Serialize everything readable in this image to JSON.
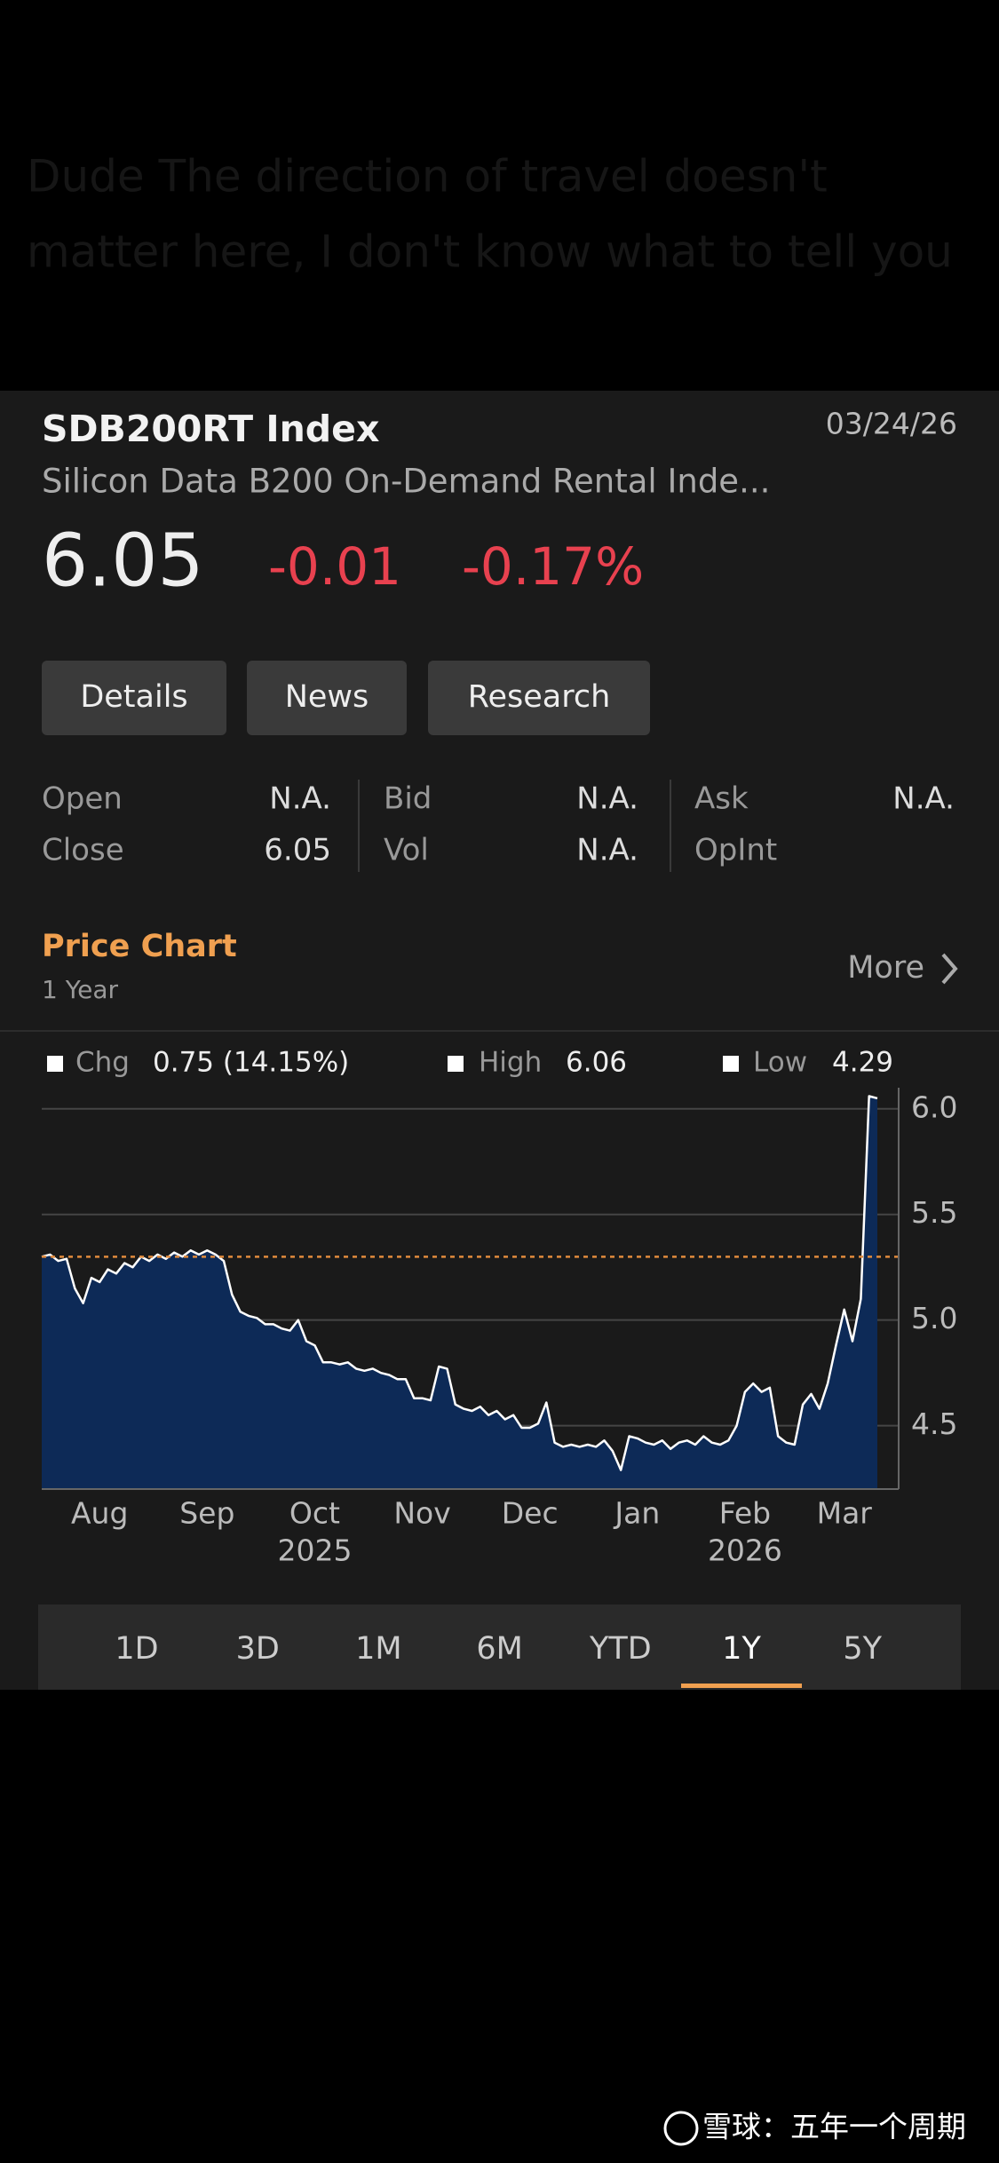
{
  "background_text": [
    "Dude The direction of travel doesn't",
    "matter here, I don't know what to tell you"
  ],
  "header": {
    "ticker": "SDB200RT Index",
    "date": "03/24/26",
    "name": "Silicon Data B200 On-Demand Rental Inde..."
  },
  "quote": {
    "last": "6.05",
    "change": "-0.01",
    "change_pct": "-0.17%"
  },
  "buttons": [
    "Details",
    "News",
    "Research"
  ],
  "stats": [
    [
      {
        "label": "Open",
        "value": "N.A."
      },
      {
        "label": "Bid",
        "value": "N.A."
      },
      {
        "label": "Ask",
        "value": "N.A."
      }
    ],
    [
      {
        "label": "Close",
        "value": "6.05"
      },
      {
        "label": "Vol",
        "value": "N.A."
      },
      {
        "label": "OpInt",
        "value": ""
      }
    ]
  ],
  "price_chart": {
    "title": "Price Chart",
    "period": "1 Year",
    "more": "More"
  },
  "chart_data": {
    "type": "line",
    "summary": [
      {
        "label": "Chg",
        "value": "0.75 (14.15%)"
      },
      {
        "label": "High",
        "value": "6.06"
      },
      {
        "label": "Low",
        "value": "4.29"
      }
    ],
    "color": "#ffffff",
    "fill_color": "#0d2a57",
    "reference_line": {
      "value": 5.3,
      "color": "#e08a3c"
    },
    "values": [
      5.3,
      5.31,
      5.28,
      5.29,
      5.15,
      5.08,
      5.2,
      5.18,
      5.24,
      5.22,
      5.27,
      5.25,
      5.3,
      5.28,
      5.31,
      5.29,
      5.32,
      5.3,
      5.33,
      5.31,
      5.33,
      5.31,
      5.28,
      5.12,
      5.04,
      5.02,
      5.01,
      4.98,
      4.98,
      4.96,
      4.95,
      5.0,
      4.9,
      4.88,
      4.8,
      4.8,
      4.79,
      4.8,
      4.77,
      4.76,
      4.77,
      4.75,
      4.74,
      4.72,
      4.72,
      4.63,
      4.63,
      4.62,
      4.78,
      4.77,
      4.6,
      4.58,
      4.57,
      4.59,
      4.55,
      4.57,
      4.53,
      4.55,
      4.49,
      4.49,
      4.51,
      4.61,
      4.42,
      4.4,
      4.41,
      4.4,
      4.41,
      4.4,
      4.43,
      4.38,
      4.29,
      4.45,
      4.44,
      4.42,
      4.41,
      4.43,
      4.39,
      4.42,
      4.43,
      4.41,
      4.45,
      4.42,
      4.41,
      4.43,
      4.5,
      4.66,
      4.7,
      4.66,
      4.68,
      4.45,
      4.42,
      4.41,
      4.6,
      4.65,
      4.58,
      4.7,
      4.88,
      5.05,
      4.9,
      5.1,
      6.06,
      6.05
    ],
    "xlim": [
      0,
      101
    ],
    "xticks": [
      {
        "value": 7,
        "label": "Aug"
      },
      {
        "value": 20,
        "label": "Sep"
      },
      {
        "value": 33,
        "label": "Oct"
      },
      {
        "value": 46,
        "label": "Nov"
      },
      {
        "value": 59,
        "label": "Dec"
      },
      {
        "value": 72,
        "label": "Jan"
      },
      {
        "value": 85,
        "label": "Feb"
      },
      {
        "value": 97,
        "label": "Mar"
      }
    ],
    "xtick_years": [
      {
        "value": 33,
        "label": "2025"
      },
      {
        "value": 85,
        "label": "2026"
      }
    ],
    "ylim": [
      4.2,
      6.1
    ],
    "yticks": [
      {
        "value": 6,
        "label": "6.0"
      },
      5.5,
      {
        "value": 5,
        "label": "5.0"
      },
      4.5
    ],
    "grid": true
  },
  "periods": [
    "1D",
    "3D",
    "1M",
    "6M",
    "YTD",
    "1Y",
    "5Y"
  ],
  "selected_period": "1Y",
  "watermark": "雪球：五年一个周期"
}
